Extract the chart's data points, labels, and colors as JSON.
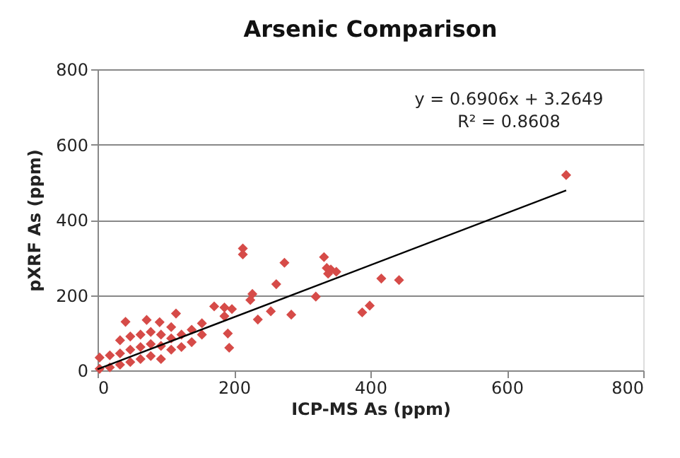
{
  "chart_data": {
    "type": "scatter",
    "title": "Arsenic Comparison",
    "xlabel": "ICP-MS  As (ppm)",
    "ylabel": "pXRF As  (ppm)",
    "xlim": [
      0,
      800
    ],
    "ylim": [
      0,
      800
    ],
    "xticks": [
      0,
      200,
      400,
      600,
      800
    ],
    "yticks": [
      0,
      200,
      400,
      600,
      800
    ],
    "grid": "y",
    "legend": false,
    "annotations": [
      "y = 0.6906x + 3.2649",
      "R² = 0.8608"
    ],
    "series": [
      {
        "type": "scatter",
        "color": "#d64b48",
        "marker": "diamond",
        "x": [
          687,
          213,
          213,
          274,
          332,
          336,
          338,
          350,
          342,
          262,
          227,
          224,
          416,
          442,
          320,
          388,
          399,
          284,
          254,
          235,
          197,
          186,
          186,
          171,
          191,
          193,
          115,
          41,
          72,
          91,
          3,
          3,
          18,
          18,
          33,
          33,
          33,
          48,
          48,
          48,
          63,
          63,
          63,
          78,
          78,
          78,
          93,
          93,
          93,
          108,
          108,
          108,
          123,
          123,
          138,
          138,
          153,
          153
        ],
        "values": [
          519,
          324,
          308,
          286,
          301,
          272,
          257,
          262,
          268,
          229,
          203,
          187,
          244,
          240,
          196,
          154,
          172,
          148,
          157,
          135,
          163,
          167,
          144,
          170,
          98,
          60,
          151,
          129,
          134,
          128,
          4,
          34,
          8,
          40,
          15,
          45,
          80,
          22,
          55,
          90,
          30,
          62,
          95,
          38,
          70,
          102,
          30,
          65,
          95,
          55,
          85,
          115,
          62,
          95,
          75,
          108,
          95,
          125
        ]
      },
      {
        "type": "line",
        "color": "#000000",
        "marker": "none",
        "x": [
          0,
          687
        ],
        "values": [
          3,
          478
        ]
      }
    ]
  }
}
